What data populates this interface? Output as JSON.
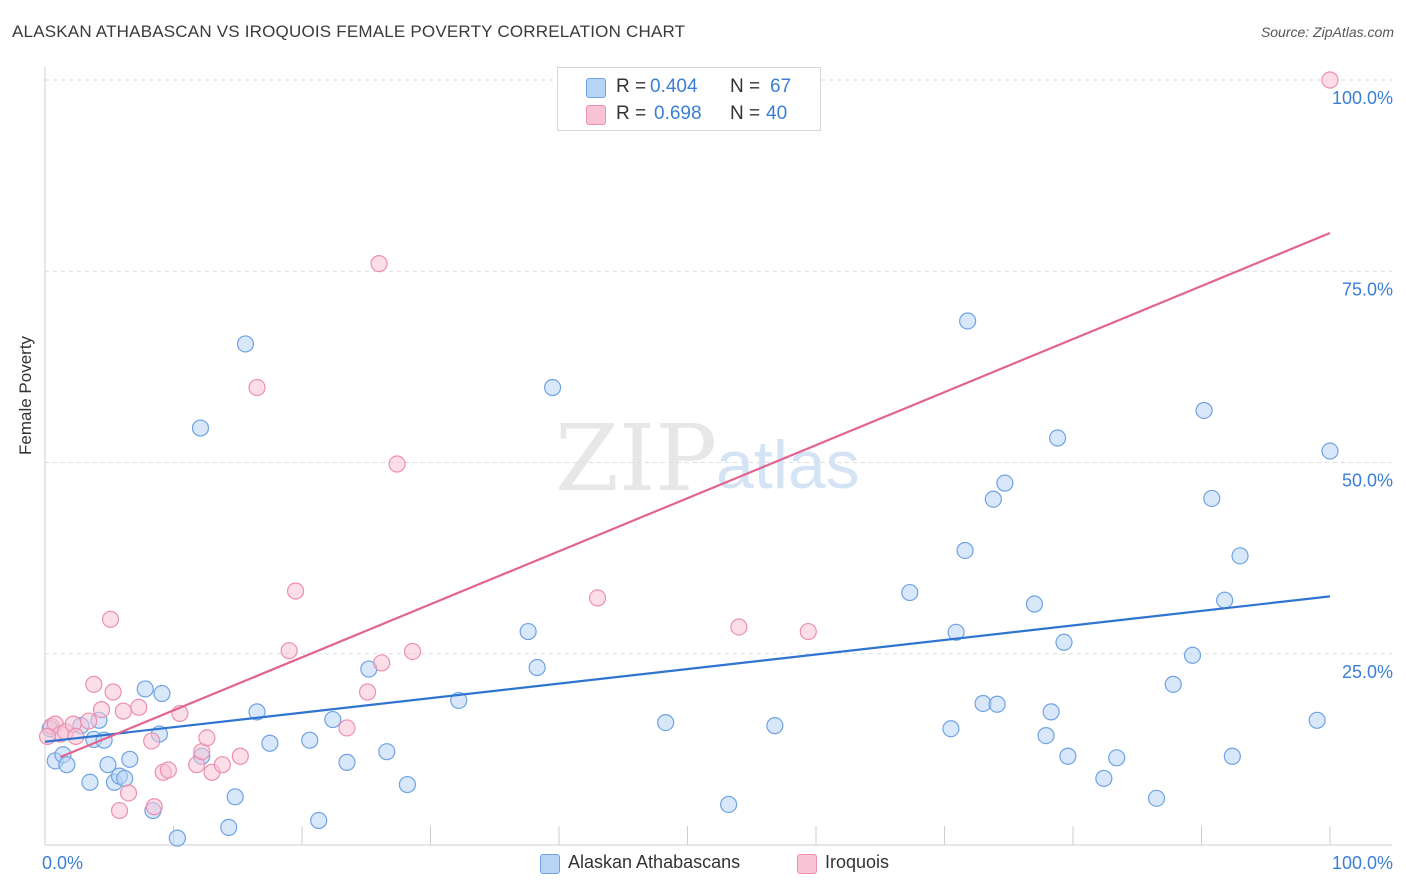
{
  "title": "ALASKAN ATHABASCAN VS IROQUOIS FEMALE POVERTY CORRELATION CHART",
  "source": "Source: ZipAtlas.com",
  "watermark": {
    "zip": "ZIP",
    "atlas": "atlas"
  },
  "legend": {
    "rows": [
      {
        "r_label": "R =",
        "r_value": "0.404",
        "n_label": "N =",
        "n_value": "67"
      },
      {
        "r_label": "R =",
        "r_value": "0.698",
        "n_label": "N =",
        "n_value": "40"
      }
    ]
  },
  "bottom_legend": {
    "series1": "Alaskan Athabascans",
    "series2": "Iroquois"
  },
  "colors": {
    "blue_fill": "#b8d4f5",
    "blue_stroke": "#6fa3e3",
    "blue_line": "#2f74d0",
    "pink_fill": "#f8c3d5",
    "pink_stroke": "#ec8fb0",
    "pink_line": "#e2648e",
    "tick_label": "#3a7fd5",
    "grid": "#dcdcdc"
  },
  "chart_data": {
    "type": "scatter",
    "title": "ALASKAN ATHABASCAN VS IROQUOIS FEMALE POVERTY CORRELATION CHART",
    "xlabel": "",
    "ylabel": "Female Poverty",
    "xlim": [
      0,
      100
    ],
    "ylim": [
      0,
      100
    ],
    "x_tick_labels": [
      "0.0%",
      "100.0%"
    ],
    "y_ticks": [
      25,
      50,
      75,
      100
    ],
    "y_tick_labels": [
      "25.0%",
      "50.0%",
      "75.0%",
      "100.0%"
    ],
    "series": [
      {
        "name": "Alaskan Athabascans",
        "trend": {
          "x": [
            0,
            100
          ],
          "y": [
            13.5,
            32.5
          ]
        },
        "points": [
          [
            0.4,
            15.2
          ],
          [
            0.8,
            11.0
          ],
          [
            1.4,
            11.8
          ],
          [
            1.7,
            10.5
          ],
          [
            2.8,
            15.6
          ],
          [
            3.5,
            8.2
          ],
          [
            3.8,
            13.8
          ],
          [
            4.2,
            16.3
          ],
          [
            4.6,
            13.7
          ],
          [
            4.9,
            10.5
          ],
          [
            5.4,
            8.2
          ],
          [
            5.8,
            9.0
          ],
          [
            6.2,
            8.7
          ],
          [
            6.6,
            11.2
          ],
          [
            7.8,
            20.4
          ],
          [
            8.4,
            4.5
          ],
          [
            8.9,
            14.5
          ],
          [
            9.1,
            19.8
          ],
          [
            10.3,
            0.9
          ],
          [
            12.1,
            54.5
          ],
          [
            12.2,
            11.6
          ],
          [
            14.3,
            2.3
          ],
          [
            14.8,
            6.3
          ],
          [
            15.6,
            65.5
          ],
          [
            16.5,
            17.4
          ],
          [
            17.5,
            13.3
          ],
          [
            20.6,
            13.7
          ],
          [
            21.3,
            3.2
          ],
          [
            22.4,
            16.4
          ],
          [
            23.5,
            10.8
          ],
          [
            25.2,
            23.0
          ],
          [
            26.6,
            12.2
          ],
          [
            28.2,
            7.9
          ],
          [
            32.2,
            18.9
          ],
          [
            37.6,
            27.9
          ],
          [
            38.3,
            23.2
          ],
          [
            39.5,
            59.8
          ],
          [
            48.3,
            16.0
          ],
          [
            53.2,
            5.3
          ],
          [
            56.8,
            15.6
          ],
          [
            67.3,
            33.0
          ],
          [
            70.5,
            15.2
          ],
          [
            70.9,
            27.8
          ],
          [
            71.6,
            38.5
          ],
          [
            71.8,
            68.5
          ],
          [
            73.0,
            18.5
          ],
          [
            73.8,
            45.2
          ],
          [
            74.1,
            18.4
          ],
          [
            74.7,
            47.3
          ],
          [
            77.0,
            31.5
          ],
          [
            77.9,
            14.3
          ],
          [
            78.3,
            17.4
          ],
          [
            78.8,
            53.2
          ],
          [
            79.3,
            26.5
          ],
          [
            79.6,
            11.6
          ],
          [
            82.4,
            8.7
          ],
          [
            83.4,
            11.4
          ],
          [
            86.5,
            6.1
          ],
          [
            87.8,
            21.0
          ],
          [
            89.3,
            24.8
          ],
          [
            90.2,
            56.8
          ],
          [
            90.8,
            45.3
          ],
          [
            91.8,
            32.0
          ],
          [
            92.4,
            11.6
          ],
          [
            93.0,
            37.8
          ],
          [
            99.0,
            16.3
          ],
          [
            100.0,
            51.5
          ]
        ]
      },
      {
        "name": "Iroquois",
        "trend": {
          "x": [
            1.2,
            100
          ],
          "y": [
            11.5,
            80.0
          ]
        },
        "points": [
          [
            0.5,
            15.5
          ],
          [
            0.8,
            15.8
          ],
          [
            1.2,
            14.5
          ],
          [
            1.6,
            14.8
          ],
          [
            2.2,
            15.8
          ],
          [
            2.4,
            14.2
          ],
          [
            3.4,
            16.2
          ],
          [
            3.8,
            21.0
          ],
          [
            4.4,
            17.7
          ],
          [
            5.1,
            29.5
          ],
          [
            5.3,
            20.0
          ],
          [
            5.8,
            4.5
          ],
          [
            6.1,
            17.5
          ],
          [
            6.5,
            6.8
          ],
          [
            7.3,
            18.0
          ],
          [
            8.3,
            13.6
          ],
          [
            8.5,
            5.0
          ],
          [
            9.2,
            9.5
          ],
          [
            9.6,
            9.8
          ],
          [
            10.5,
            17.2
          ],
          [
            11.8,
            10.5
          ],
          [
            12.2,
            12.2
          ],
          [
            12.6,
            14.0
          ],
          [
            13.0,
            9.5
          ],
          [
            13.8,
            10.5
          ],
          [
            15.2,
            11.6
          ],
          [
            16.5,
            59.8
          ],
          [
            19.0,
            25.4
          ],
          [
            19.5,
            33.2
          ],
          [
            23.5,
            15.3
          ],
          [
            25.1,
            20.0
          ],
          [
            26.0,
            76.0
          ],
          [
            26.2,
            23.8
          ],
          [
            27.4,
            49.8
          ],
          [
            28.6,
            25.3
          ],
          [
            43.0,
            32.3
          ],
          [
            54.0,
            28.5
          ],
          [
            59.4,
            27.9
          ],
          [
            100.0,
            100.0
          ],
          [
            0.2,
            14.2
          ]
        ]
      }
    ]
  }
}
